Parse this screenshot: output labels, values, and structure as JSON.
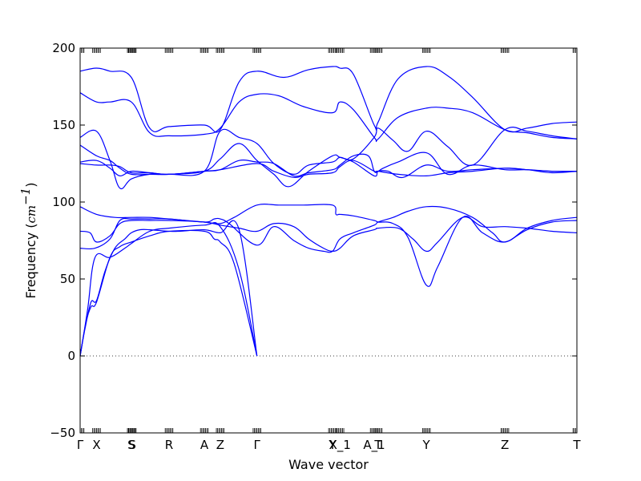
{
  "chart_data": {
    "type": "line",
    "title": "",
    "xlabel": "Wave vector",
    "ylabel": {
      "prefix": "Frequency (",
      "unit": "cm",
      "exponent": "−1",
      "suffix": ")"
    },
    "ylim": [
      -50,
      200
    ],
    "yticks": [
      -50,
      0,
      50,
      100,
      150,
      200
    ],
    "xlim": [
      0,
      1
    ],
    "high_symmetry_points": [
      {
        "label": "Γ",
        "x": 0.0
      },
      {
        "label": "X",
        "x": 0.033
      },
      {
        "label": "S",
        "x": 0.103
      },
      {
        "label": "S",
        "x": 0.105
      },
      {
        "label": "R",
        "x": 0.179
      },
      {
        "label": "A",
        "x": 0.25
      },
      {
        "label": "Z",
        "x": 0.282
      },
      {
        "label": "Γ",
        "x": 0.356
      },
      {
        "label": "Y",
        "x": 0.508
      },
      {
        "label": "X_1",
        "x": 0.523
      },
      {
        "label": "A_1",
        "x": 0.592
      },
      {
        "label": "T",
        "x": 0.6
      },
      {
        "label": "Y",
        "x": 0.697
      },
      {
        "label": "Z",
        "x": 0.855
      },
      {
        "label": "T",
        "x": 1.0
      }
    ],
    "zero_line": 0,
    "line_color": "#0000ff",
    "grid": false,
    "series": [
      {
        "points": [
          [
            0,
            0
          ],
          [
            0.01,
            18
          ],
          [
            0.022,
            35
          ],
          [
            0.033,
            36
          ],
          [
            0.05,
            55
          ],
          [
            0.07,
            70
          ],
          [
            0.09,
            76
          ],
          [
            0.103,
            80
          ],
          [
            0.12,
            82
          ],
          [
            0.14,
            82
          ],
          [
            0.179,
            81
          ],
          [
            0.2,
            81
          ],
          [
            0.25,
            82
          ],
          [
            0.282,
            80
          ],
          [
            0.32,
            82
          ],
          [
            0.356,
            0
          ]
        ]
      },
      {
        "points": [
          [
            0,
            0
          ],
          [
            0.012,
            22
          ],
          [
            0.022,
            32
          ],
          [
            0.033,
            35
          ],
          [
            0.06,
            64
          ],
          [
            0.08,
            71
          ],
          [
            0.103,
            74
          ],
          [
            0.14,
            78
          ],
          [
            0.179,
            81
          ],
          [
            0.25,
            81
          ],
          [
            0.27,
            76
          ],
          [
            0.282,
            74
          ],
          [
            0.31,
            60
          ],
          [
            0.356,
            0
          ]
        ]
      },
      {
        "points": [
          [
            0,
            0
          ],
          [
            0.015,
            30
          ],
          [
            0.03,
            64
          ],
          [
            0.06,
            64
          ],
          [
            0.09,
            70
          ],
          [
            0.103,
            73
          ],
          [
            0.14,
            81
          ],
          [
            0.179,
            83
          ],
          [
            0.25,
            85
          ],
          [
            0.282,
            84
          ],
          [
            0.32,
            56
          ],
          [
            0.356,
            0
          ]
        ]
      },
      {
        "points": [
          [
            0,
            70
          ],
          [
            0.03,
            70
          ],
          [
            0.06,
            76
          ],
          [
            0.08,
            88
          ],
          [
            0.103,
            89
          ],
          [
            0.14,
            89
          ],
          [
            0.179,
            89
          ],
          [
            0.25,
            87
          ],
          [
            0.27,
            89
          ],
          [
            0.282,
            89
          ],
          [
            0.3,
            86
          ],
          [
            0.356,
            72
          ],
          [
            0.39,
            84
          ],
          [
            0.43,
            75
          ],
          [
            0.46,
            70
          ],
          [
            0.49,
            68
          ],
          [
            0.508,
            68
          ],
          [
            0.523,
            76
          ],
          [
            0.55,
            80
          ],
          [
            0.592,
            85
          ],
          [
            0.6,
            87
          ],
          [
            0.63,
            90
          ],
          [
            0.66,
            94
          ],
          [
            0.697,
            97
          ],
          [
            0.74,
            96
          ],
          [
            0.79,
            90
          ],
          [
            0.83,
            80
          ],
          [
            0.855,
            74
          ],
          [
            0.9,
            82
          ],
          [
            0.95,
            87
          ],
          [
            1.0,
            88
          ]
        ]
      },
      {
        "points": [
          [
            0,
            81
          ],
          [
            0.02,
            80
          ],
          [
            0.033,
            74
          ],
          [
            0.06,
            78
          ],
          [
            0.08,
            86
          ],
          [
            0.103,
            88
          ],
          [
            0.14,
            88
          ],
          [
            0.179,
            88
          ],
          [
            0.25,
            87
          ],
          [
            0.282,
            85
          ],
          [
            0.32,
            83
          ],
          [
            0.356,
            81
          ],
          [
            0.39,
            86
          ],
          [
            0.43,
            84
          ],
          [
            0.46,
            76
          ],
          [
            0.49,
            70
          ],
          [
            0.508,
            68
          ],
          [
            0.523,
            70
          ],
          [
            0.55,
            78
          ],
          [
            0.592,
            82
          ],
          [
            0.6,
            83
          ],
          [
            0.64,
            83
          ],
          [
            0.67,
            76
          ],
          [
            0.697,
            68
          ],
          [
            0.72,
            74
          ],
          [
            0.77,
            90
          ],
          [
            0.81,
            84
          ],
          [
            0.855,
            84
          ],
          [
            0.9,
            83
          ],
          [
            0.95,
            81
          ],
          [
            1.0,
            80
          ]
        ]
      },
      {
        "points": [
          [
            0,
            97
          ],
          [
            0.033,
            92
          ],
          [
            0.07,
            90
          ],
          [
            0.103,
            90
          ],
          [
            0.14,
            90
          ],
          [
            0.179,
            89
          ],
          [
            0.25,
            87
          ],
          [
            0.282,
            86
          ],
          [
            0.31,
            90
          ],
          [
            0.356,
            98
          ],
          [
            0.4,
            98
          ],
          [
            0.45,
            98
          ],
          [
            0.508,
            98
          ],
          [
            0.515,
            92
          ],
          [
            0.523,
            92
          ],
          [
            0.55,
            91
          ],
          [
            0.592,
            88
          ],
          [
            0.6,
            87
          ],
          [
            0.63,
            86
          ],
          [
            0.66,
            77
          ],
          [
            0.697,
            46
          ],
          [
            0.72,
            58
          ],
          [
            0.77,
            90
          ],
          [
            0.81,
            80
          ],
          [
            0.855,
            74
          ],
          [
            0.9,
            83
          ],
          [
            0.95,
            88
          ],
          [
            1.0,
            90
          ]
        ]
      },
      {
        "points": [
          [
            0,
            125
          ],
          [
            0.033,
            124
          ],
          [
            0.06,
            124
          ],
          [
            0.08,
            123
          ],
          [
            0.103,
            119
          ],
          [
            0.14,
            119
          ],
          [
            0.179,
            118
          ],
          [
            0.25,
            120
          ],
          [
            0.282,
            121
          ],
          [
            0.356,
            125
          ],
          [
            0.39,
            120
          ],
          [
            0.43,
            116
          ],
          [
            0.46,
            118
          ],
          [
            0.508,
            119
          ],
          [
            0.523,
            123
          ],
          [
            0.55,
            127
          ],
          [
            0.592,
            120
          ],
          [
            0.6,
            120
          ],
          [
            0.64,
            118
          ],
          [
            0.697,
            117
          ],
          [
            0.74,
            119
          ],
          [
            0.79,
            120
          ],
          [
            0.855,
            122
          ],
          [
            0.9,
            121
          ],
          [
            0.95,
            119
          ],
          [
            1.0,
            120
          ]
        ]
      },
      {
        "points": [
          [
            0,
            126
          ],
          [
            0.033,
            127
          ],
          [
            0.06,
            122
          ],
          [
            0.08,
            117
          ],
          [
            0.103,
            120
          ],
          [
            0.14,
            119
          ],
          [
            0.179,
            118
          ],
          [
            0.25,
            120
          ],
          [
            0.282,
            121
          ],
          [
            0.32,
            127
          ],
          [
            0.356,
            126
          ],
          [
            0.39,
            125
          ],
          [
            0.43,
            117
          ],
          [
            0.46,
            119
          ],
          [
            0.508,
            121
          ],
          [
            0.523,
            124
          ],
          [
            0.55,
            130
          ],
          [
            0.58,
            130
          ],
          [
            0.592,
            120
          ],
          [
            0.6,
            120
          ],
          [
            0.61,
            122
          ],
          [
            0.64,
            126
          ],
          [
            0.697,
            132
          ],
          [
            0.74,
            118
          ],
          [
            0.79,
            124
          ],
          [
            0.855,
            121
          ],
          [
            0.9,
            121
          ],
          [
            0.95,
            120
          ],
          [
            1.0,
            120
          ]
        ]
      },
      {
        "points": [
          [
            0,
            137
          ],
          [
            0.033,
            130
          ],
          [
            0.06,
            127
          ],
          [
            0.08,
            122
          ],
          [
            0.103,
            118
          ],
          [
            0.14,
            118
          ],
          [
            0.179,
            118
          ],
          [
            0.25,
            120
          ],
          [
            0.282,
            128
          ],
          [
            0.32,
            138
          ],
          [
            0.356,
            127
          ],
          [
            0.39,
            118
          ],
          [
            0.42,
            110
          ],
          [
            0.46,
            120
          ],
          [
            0.508,
            130
          ],
          [
            0.523,
            129
          ],
          [
            0.55,
            126
          ],
          [
            0.592,
            117
          ],
          [
            0.6,
            120
          ],
          [
            0.62,
            120
          ],
          [
            0.65,
            116
          ],
          [
            0.697,
            124
          ],
          [
            0.74,
            120
          ],
          [
            0.79,
            121
          ],
          [
            0.855,
            122
          ],
          [
            0.9,
            121
          ],
          [
            0.95,
            120
          ],
          [
            1.0,
            120
          ]
        ]
      },
      {
        "points": [
          [
            0,
            142
          ],
          [
            0.033,
            146
          ],
          [
            0.06,
            127
          ],
          [
            0.08,
            109
          ],
          [
            0.103,
            115
          ],
          [
            0.14,
            118
          ],
          [
            0.179,
            118
          ],
          [
            0.25,
            120
          ],
          [
            0.282,
            146
          ],
          [
            0.32,
            142
          ],
          [
            0.356,
            138
          ],
          [
            0.39,
            125
          ],
          [
            0.43,
            118
          ],
          [
            0.46,
            124
          ],
          [
            0.508,
            126
          ],
          [
            0.523,
            129
          ],
          [
            0.55,
            128
          ],
          [
            0.592,
            142
          ],
          [
            0.6,
            148
          ],
          [
            0.63,
            140
          ],
          [
            0.66,
            133
          ],
          [
            0.697,
            146
          ],
          [
            0.74,
            136
          ],
          [
            0.79,
            124
          ],
          [
            0.855,
            147
          ],
          [
            0.9,
            146
          ],
          [
            0.95,
            143
          ],
          [
            1.0,
            141
          ]
        ]
      },
      {
        "points": [
          [
            0,
            171
          ],
          [
            0.033,
            165
          ],
          [
            0.06,
            165
          ],
          [
            0.103,
            165
          ],
          [
            0.14,
            145
          ],
          [
            0.179,
            143
          ],
          [
            0.25,
            144
          ],
          [
            0.282,
            148
          ],
          [
            0.32,
            165
          ],
          [
            0.356,
            170
          ],
          [
            0.4,
            169
          ],
          [
            0.45,
            162
          ],
          [
            0.508,
            158
          ],
          [
            0.523,
            165
          ],
          [
            0.55,
            160
          ],
          [
            0.592,
            142
          ],
          [
            0.6,
            141
          ],
          [
            0.64,
            155
          ],
          [
            0.697,
            161
          ],
          [
            0.74,
            161
          ],
          [
            0.79,
            158
          ],
          [
            0.855,
            147
          ],
          [
            0.9,
            145
          ],
          [
            0.95,
            142
          ],
          [
            1.0,
            141
          ]
        ]
      },
      {
        "points": [
          [
            0,
            185
          ],
          [
            0.033,
            187
          ],
          [
            0.06,
            185
          ],
          [
            0.103,
            181
          ],
          [
            0.14,
            148
          ],
          [
            0.179,
            149
          ],
          [
            0.25,
            150
          ],
          [
            0.282,
            147
          ],
          [
            0.32,
            178
          ],
          [
            0.356,
            185
          ],
          [
            0.41,
            181
          ],
          [
            0.46,
            186
          ],
          [
            0.508,
            188
          ],
          [
            0.523,
            187
          ],
          [
            0.55,
            183
          ],
          [
            0.592,
            150
          ],
          [
            0.6,
            152
          ],
          [
            0.64,
            180
          ],
          [
            0.697,
            188
          ],
          [
            0.74,
            182
          ],
          [
            0.79,
            168
          ],
          [
            0.855,
            147
          ],
          [
            0.9,
            148
          ],
          [
            0.95,
            151
          ],
          [
            1.0,
            152
          ]
        ]
      }
    ]
  }
}
